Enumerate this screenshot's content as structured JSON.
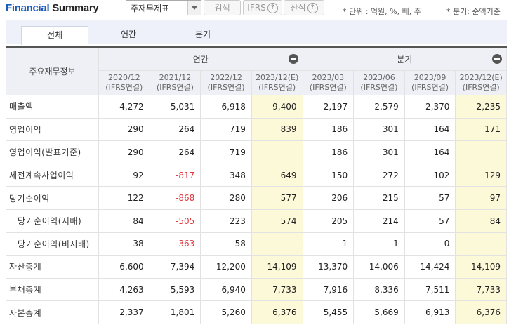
{
  "header": {
    "title_a": "Financial",
    "title_b": "Summary",
    "select_value": "주재무제표",
    "search_label": "검색",
    "ifrs_label": "IFRS",
    "calc_label": "산식",
    "help_glyph": "?",
    "unit_note": "* 단위 : 억원, %, 배, 주",
    "basis_note": "* 분기: 순액기준"
  },
  "tabs": [
    "전체",
    "연간",
    "분기"
  ],
  "table": {
    "row_header": "주요재무정보",
    "group_annual": "연간",
    "group_quarter": "분기",
    "periods": [
      {
        "date": "2020/12",
        "basis": "(IFRS연결)"
      },
      {
        "date": "2021/12",
        "basis": "(IFRS연결)"
      },
      {
        "date": "2022/12",
        "basis": "(IFRS연결)"
      },
      {
        "date": "2023/12(E)",
        "basis": "(IFRS연결)"
      },
      {
        "date": "2023/03",
        "basis": "(IFRS연결)"
      },
      {
        "date": "2023/06",
        "basis": "(IFRS연결)"
      },
      {
        "date": "2023/09",
        "basis": "(IFRS연결)"
      },
      {
        "date": "2023/12(E)",
        "basis": "(IFRS연결)"
      }
    ],
    "rows": [
      {
        "label": "매출액",
        "values": [
          "4,272",
          "5,031",
          "6,918",
          "9,400",
          "2,197",
          "2,579",
          "2,370",
          "2,235"
        ]
      },
      {
        "label": "영업이익",
        "values": [
          "290",
          "264",
          "719",
          "839",
          "186",
          "301",
          "164",
          "171"
        ]
      },
      {
        "label": "영업이익(발표기준)",
        "values": [
          "290",
          "264",
          "719",
          "",
          "186",
          "301",
          "164",
          ""
        ]
      },
      {
        "label": "세전계속사업이익",
        "values": [
          "92",
          "-817",
          "348",
          "649",
          "150",
          "272",
          "102",
          "129"
        ]
      },
      {
        "label": "당기순이익",
        "values": [
          "122",
          "-868",
          "280",
          "577",
          "206",
          "215",
          "57",
          "97"
        ]
      },
      {
        "label": "당기순이익(지배)",
        "values": [
          "84",
          "-505",
          "223",
          "574",
          "205",
          "214",
          "57",
          "84"
        ]
      },
      {
        "label": "당기순이익(비지배)",
        "values": [
          "38",
          "-363",
          "58",
          "",
          "1",
          "1",
          "0",
          ""
        ]
      },
      {
        "label": "자산총계",
        "values": [
          "6,600",
          "7,394",
          "12,200",
          "14,109",
          "13,370",
          "14,006",
          "14,424",
          "14,109"
        ]
      },
      {
        "label": "부채총계",
        "values": [
          "4,263",
          "5,593",
          "6,940",
          "7,733",
          "7,916",
          "8,336",
          "7,511",
          "7,733"
        ]
      },
      {
        "label": "자본총계",
        "values": [
          "2,337",
          "1,801",
          "5,260",
          "6,376",
          "5,455",
          "5,669",
          "6,913",
          "6,376"
        ]
      }
    ]
  },
  "colors": {
    "title_accent": "#1a5bb8",
    "estimate_bg": "#fcf9d8",
    "negative": "#e0393e"
  }
}
